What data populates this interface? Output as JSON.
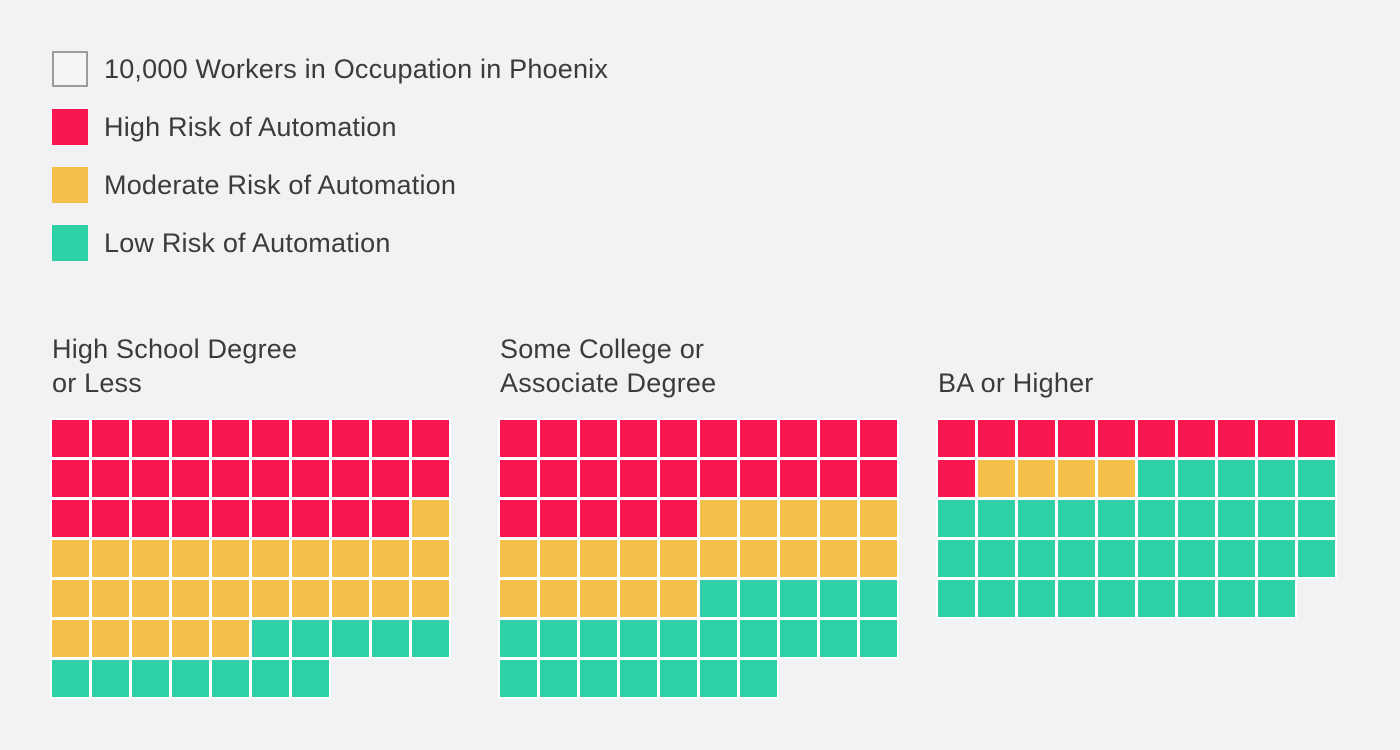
{
  "page": {
    "background": "#F0F2F3",
    "text_color": "#3B3B3B",
    "gap_color": "#FFFFFF"
  },
  "colors": {
    "high": "#F6184E",
    "moderate": "#F3C14A",
    "low": "#2ED1A5",
    "empty_fill": "#F4F5F6",
    "empty_border": "#9C9C9C"
  },
  "legend": {
    "items": [
      {
        "key": "unit",
        "swatch": "empty",
        "label": "10,000 Workers in Occupation in Phoenix"
      },
      {
        "key": "high",
        "swatch": "high",
        "label": "High Risk of Automation"
      },
      {
        "key": "moderate",
        "swatch": "moderate",
        "label": "Moderate Risk of Automation"
      },
      {
        "key": "low",
        "swatch": "low",
        "label": "Low Risk of Automation"
      }
    ]
  },
  "chart_data": {
    "type": "waffle",
    "unit_per_square": 10000,
    "unit_label": "10,000 Workers in Occupation in Phoenix",
    "categories": [
      "High Risk of Automation",
      "Moderate Risk of Automation",
      "Low Risk of Automation"
    ],
    "cell_map": {
      "R": "high",
      "Y": "moderate",
      "G": "low"
    },
    "columns_per_row": 10,
    "groups": [
      {
        "title": "High School Degree or Less",
        "title_lines": [
          "High School Degree",
          "or Less"
        ],
        "rows": [
          "RRRRRRRRRR",
          "RRRRRRRRRR",
          "RRRRRRRRRY",
          "YYYYYYYYYY",
          "YYYYYYYYYY",
          "YYYYYGGGGG",
          "GGGGGGG"
        ],
        "squares": {
          "high": 29,
          "moderate": 26,
          "low": 12,
          "total": 67
        },
        "workers": {
          "high": 290000,
          "moderate": 260000,
          "low": 120000,
          "total": 670000
        }
      },
      {
        "title": "Some College or Associate Degree",
        "title_lines": [
          "Some College or",
          "Associate Degree"
        ],
        "rows": [
          "RRRRRRRRRR",
          "RRRRRRRRRR",
          "RRRRRYYYYY",
          "YYYYYYYYYY",
          "YYYYYGGGGG",
          "GGGGGGGGGG",
          "GGGGGGG"
        ],
        "squares": {
          "high": 25,
          "moderate": 20,
          "low": 22,
          "total": 67
        },
        "workers": {
          "high": 250000,
          "moderate": 200000,
          "low": 220000,
          "total": 670000
        }
      },
      {
        "title": "BA or Higher",
        "title_lines": [
          "BA or Higher"
        ],
        "rows": [
          "RRRRRRRRRR",
          "RYYYYGGGGG",
          "GGGGGGGGGG",
          "GGGGGGGGGG",
          "GGGGGGGGG"
        ],
        "squares": {
          "high": 11,
          "moderate": 4,
          "low": 34,
          "total": 49
        },
        "workers": {
          "high": 110000,
          "moderate": 40000,
          "low": 340000,
          "total": 490000
        }
      }
    ]
  }
}
